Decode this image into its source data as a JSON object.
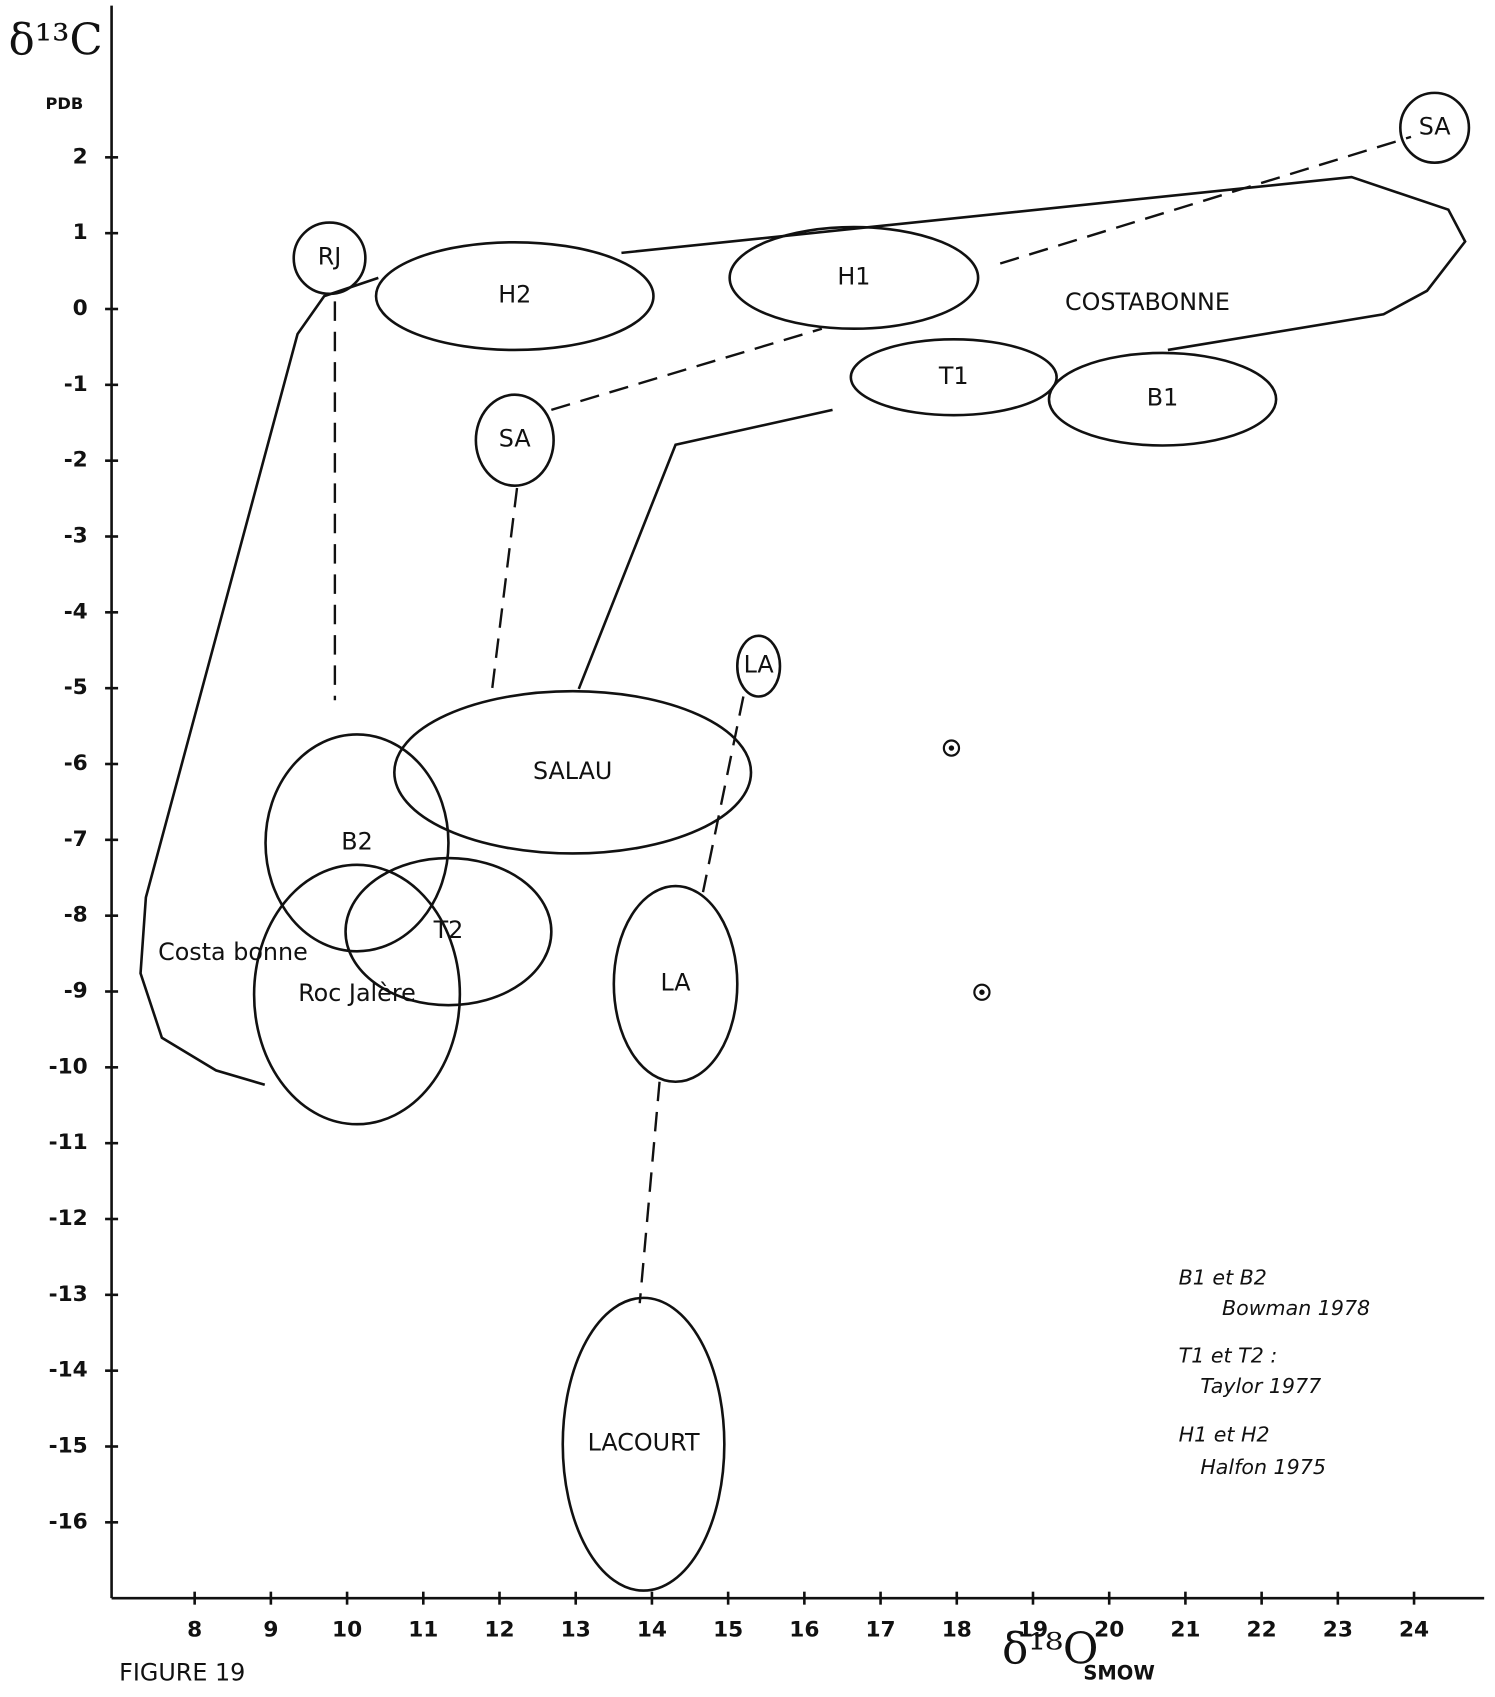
{
  "chart_data": {
    "type": "region",
    "x_label": "δ¹⁸O",
    "x_label_sub": "SMOW",
    "y_label": "δ¹³C",
    "y_label_sub": "PDB",
    "xlim": [
      6.91,
      24.92
    ],
    "xticks": [
      8,
      9,
      10,
      11,
      12,
      13,
      14,
      15,
      16,
      17,
      18,
      19,
      20,
      21,
      22,
      23,
      24
    ],
    "ylim": [
      -17,
      4
    ],
    "yticks": [
      2,
      1,
      0,
      -1,
      -2,
      -3,
      -4,
      -5,
      -6,
      -7,
      -8,
      -9,
      -10,
      -11,
      -12,
      -13,
      -14,
      -15,
      -16
    ],
    "regions": [
      {
        "label": "RJ",
        "cx": 9.77,
        "cy": 0.67,
        "rx": 0.47,
        "ry": 0.47
      },
      {
        "label": "H2",
        "cx": 12.2,
        "cy": 0.17,
        "rx": 1.82,
        "ry": 0.71
      },
      {
        "label": "H1",
        "cx": 16.65,
        "cy": 0.41,
        "rx": 1.63,
        "ry": 0.67
      },
      {
        "label": "T1",
        "cx": 17.96,
        "cy": -0.9,
        "rx": 1.35,
        "ry": 0.5
      },
      {
        "label": "B1",
        "cx": 20.7,
        "cy": -1.19,
        "rx": 1.49,
        "ry": 0.61
      },
      {
        "label": "SA",
        "cx": 12.2,
        "cy": -1.73,
        "rx": 0.51,
        "ry": 0.6
      },
      {
        "label": "SA",
        "cx": 24.27,
        "cy": 2.39,
        "rx": 0.45,
        "ry": 0.46
      },
      {
        "label": "LA",
        "cx": 15.4,
        "cy": -4.71,
        "rx": 0.28,
        "ry": 0.4
      },
      {
        "label": "LA",
        "cx": 14.31,
        "cy": -8.9,
        "rx": 0.81,
        "ry": 1.29
      },
      {
        "label": "LACOURT",
        "cx": 13.89,
        "cy": -14.97,
        "rx": 1.06,
        "ry": 1.93
      },
      {
        "label": "SALAU",
        "cx": 12.96,
        "cy": -6.11,
        "rx": 2.34,
        "ry": 1.07
      },
      {
        "label": "T2",
        "cx": 11.33,
        "cy": -8.21,
        "rx": 1.35,
        "ry": 0.97
      },
      {
        "label": "B2",
        "cx": 10.13,
        "cy": -7.04,
        "rx": 1.2,
        "ry": 1.43
      },
      {
        "label": "Roc Jalère",
        "cx": 10.13,
        "cy": -9.04,
        "rx": 1.35,
        "ry": 1.71
      }
    ],
    "outlines": [
      {
        "label": "COSTABONNE",
        "label_x": 19.42,
        "label_y": 0.07,
        "points": [
          [
            13.6,
            0.74
          ],
          [
            23.18,
            1.74
          ],
          [
            24.45,
            1.31
          ],
          [
            24.67,
            0.89
          ],
          [
            24.17,
            0.24
          ],
          [
            23.6,
            -0.07
          ],
          [
            20.77,
            -0.54
          ]
        ]
      },
      {
        "label": "Costa bonne",
        "label_x": 7.52,
        "label_y": -8.5,
        "points": [
          [
            10.41,
            0.41
          ],
          [
            9.7,
            0.17
          ],
          [
            9.35,
            -0.33
          ],
          [
            7.36,
            -7.76
          ],
          [
            7.29,
            -8.76
          ],
          [
            7.57,
            -9.61
          ],
          [
            8.28,
            -10.04
          ],
          [
            8.92,
            -10.23
          ]
        ]
      },
      {
        "points": [
          [
            16.37,
            -1.33
          ],
          [
            14.31,
            -1.79
          ],
          [
            13.04,
            -5.01
          ]
        ]
      }
    ],
    "links": [
      [
        [
          9.84,
          0.1
        ],
        [
          9.84,
          -5.16
        ]
      ],
      [
        [
          12.23,
          -2.36
        ],
        [
          11.9,
          -5.04
        ]
      ],
      [
        [
          12.68,
          -1.33
        ],
        [
          16.23,
          -0.26
        ]
      ],
      [
        [
          18.57,
          0.6
        ],
        [
          23.96,
          2.27
        ]
      ],
      [
        [
          15.2,
          -5.11
        ],
        [
          14.67,
          -7.69
        ]
      ],
      [
        [
          14.1,
          -10.19
        ],
        [
          13.84,
          -13.11
        ]
      ]
    ],
    "points": [
      [
        17.93,
        -5.79
      ],
      [
        18.33,
        -9.01
      ]
    ],
    "notes": [
      "B1 et B2",
      "Bowman 1978",
      "T1 et T2 :",
      "Taylor 1977",
      "H1 et H2",
      "Halfon 1975"
    ],
    "figure_label": "FIGURE 19"
  }
}
